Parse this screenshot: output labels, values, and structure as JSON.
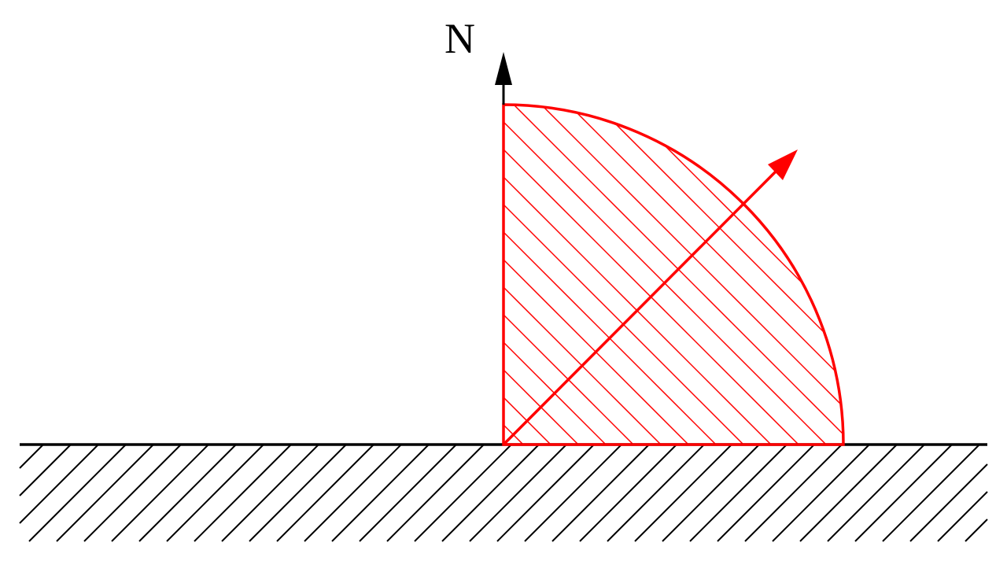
{
  "labels": {
    "normal": "N"
  },
  "colors": {
    "body": "#ff0000",
    "ground": "#000000"
  }
}
